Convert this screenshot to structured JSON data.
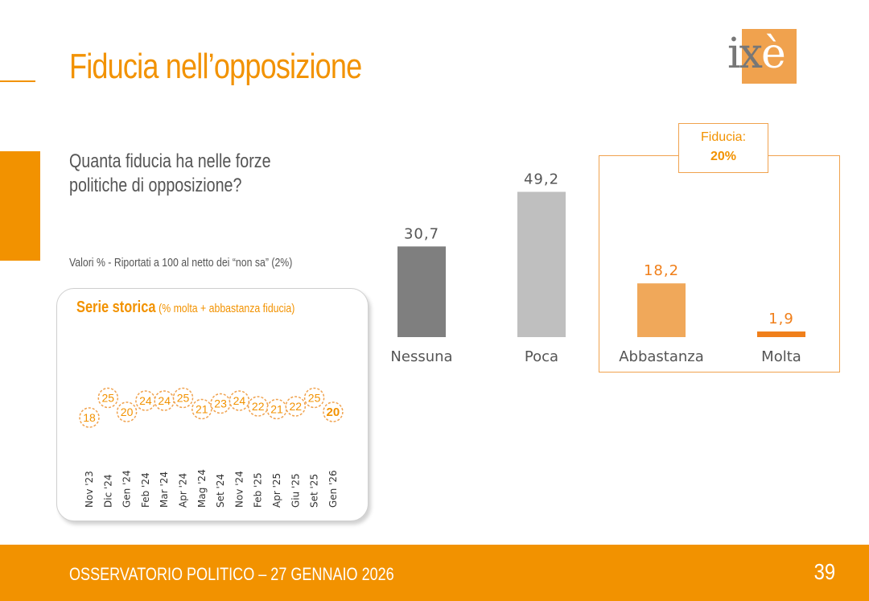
{
  "header": {
    "title": "Fiducia nell’opposizione",
    "logo_text_dark": "ix",
    "logo_text_light": "è"
  },
  "question": "Quanta fiducia ha nelle forze politiche di opposizione?",
  "note": "Valori % - Riportati a 100 al netto dei “non sa” (2%)",
  "fiducia_box": {
    "label": "Fiducia:",
    "value": "20%"
  },
  "colors": {
    "accent": "#f29200",
    "nessuna": "#7f7f7f",
    "poca": "#bfbfbf",
    "abbastanza": "#f0a85a",
    "molta": "#f07f1a"
  },
  "chart_data": [
    {
      "type": "bar",
      "categories": [
        "Nessuna",
        "Poca",
        "Abbastanza",
        "Molta"
      ],
      "values": [
        30.7,
        49.2,
        18.2,
        1.9
      ],
      "value_labels": [
        "30,7",
        "49,2",
        "18,2",
        "1,9"
      ],
      "title": "",
      "xlabel": "",
      "ylabel": "",
      "grid": false
    },
    {
      "type": "line",
      "title": "Serie storica",
      "subtitle": "(% molta + abbastanza fiducia)",
      "x": [
        "Nov '23",
        "Dic '24",
        "Gen '24",
        "Feb '24",
        "Mar '24",
        "Apr '24",
        "Mag '24",
        "Set '24",
        "Nov '24",
        "Feb '25",
        "Apr '25",
        "Giu '25",
        "Set '25",
        "Gen '26"
      ],
      "values": [
        18,
        25,
        20,
        24,
        24,
        25,
        21,
        23,
        24,
        22,
        21,
        22,
        25,
        20
      ],
      "highlight_last": true,
      "grid": false
    }
  ],
  "footer": {
    "text": "OSSERVATORIO POLITICO – 27 GENNAIO 2026",
    "page": "39"
  }
}
